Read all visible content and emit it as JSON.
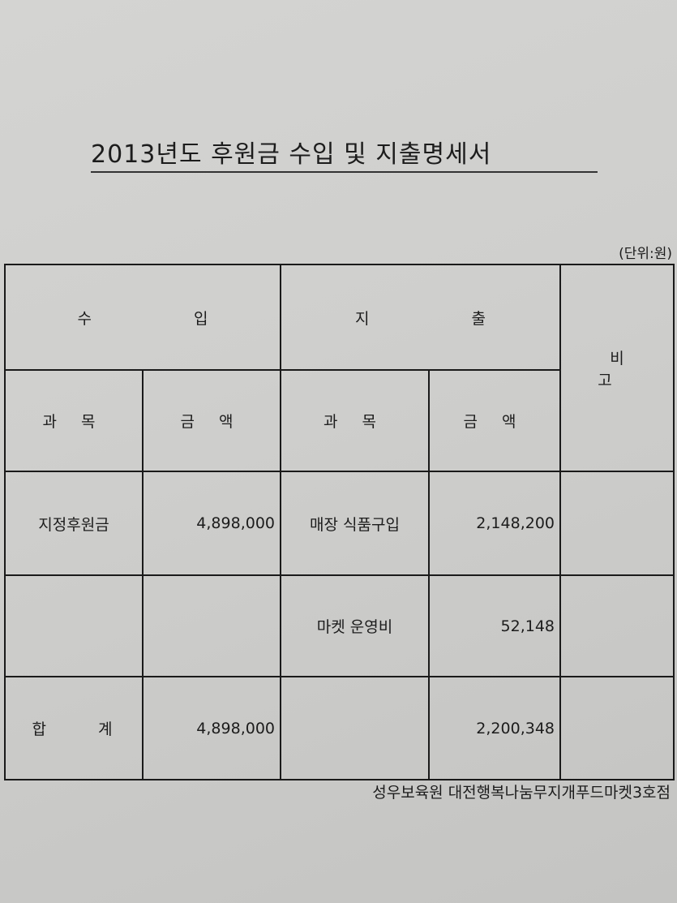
{
  "title": "2013년도 후원금 수입 및 지출명세서",
  "unit": "(단위:원)",
  "headers": {
    "income": "수 입",
    "expense": "지 출",
    "remarks": "비 고",
    "item": "과 목",
    "amount": "금 액"
  },
  "rows": [
    {
      "income_item": "지정후원금",
      "income_amount": "4,898,000",
      "expense_item": "매장 식품구입",
      "expense_amount": "2,148,200",
      "remarks": ""
    },
    {
      "income_item": "",
      "income_amount": "",
      "expense_item": "마켓 운영비",
      "expense_amount": "52,148",
      "remarks": ""
    },
    {
      "income_item": "합 계",
      "income_amount": "4,898,000",
      "expense_item": "",
      "expense_amount": "2,200,348",
      "remarks": ""
    }
  ],
  "footer": "성우보육원 대전행복나눔무지개푸드마켓3호점"
}
